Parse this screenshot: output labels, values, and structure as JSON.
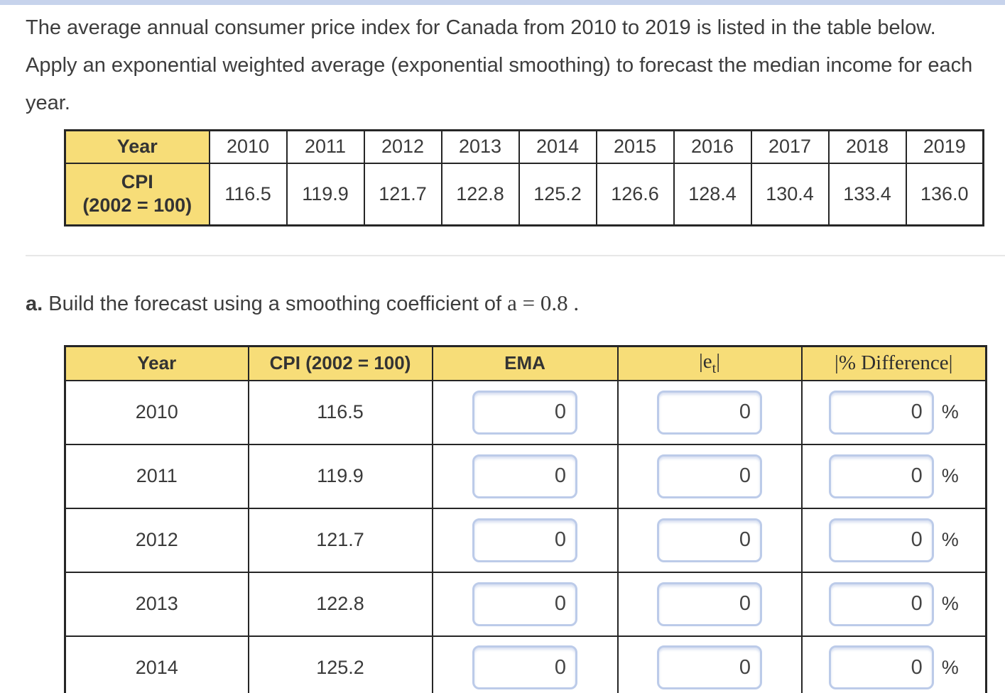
{
  "page": {
    "intro_text": "The average annual consumer price index for Canada from 2010 to 2019 is listed in the table below. Apply an exponential weighted average (exponential smoothing) to forecast the median income for each year.",
    "part_a_label": "a.",
    "part_a_text": " Build the forecast using a smoothing coefficient of ",
    "part_a_math": "a = 0.8 ."
  },
  "colors": {
    "header_yellow": "#f7dd78",
    "table_border": "#262626",
    "input_border": "#bccbe9",
    "topbar_blue": "#c7d3ec",
    "divider_gray": "#e7e7e7",
    "text": "#3d3d3d"
  },
  "cpi_table": {
    "year_header": "Year",
    "cpi_header_line1": "CPI",
    "cpi_header_line2": "(2002 = 100)",
    "years": [
      "2010",
      "2011",
      "2012",
      "2013",
      "2014",
      "2015",
      "2016",
      "2017",
      "2018",
      "2019"
    ],
    "values": [
      "116.5",
      "119.9",
      "121.7",
      "122.8",
      "125.2",
      "126.6",
      "128.4",
      "130.4",
      "133.4",
      "136.0"
    ]
  },
  "forecast_table": {
    "headers": {
      "year": "Year",
      "cpi": "CPI (2002 = 100)",
      "ema": "EMA",
      "et": {
        "pre": "|e",
        "sub": "t",
        "post": "|"
      },
      "diff": "|% Difference|"
    },
    "percent_sign": "%",
    "rows": [
      {
        "year": "2010",
        "cpi": "116.5",
        "ema": "0",
        "et": "0",
        "diff": "0"
      },
      {
        "year": "2011",
        "cpi": "119.9",
        "ema": "0",
        "et": "0",
        "diff": "0"
      },
      {
        "year": "2012",
        "cpi": "121.7",
        "ema": "0",
        "et": "0",
        "diff": "0"
      },
      {
        "year": "2013",
        "cpi": "122.8",
        "ema": "0",
        "et": "0",
        "diff": "0"
      },
      {
        "year": "2014",
        "cpi": "125.2",
        "ema": "0",
        "et": "0",
        "diff": "0"
      }
    ]
  }
}
